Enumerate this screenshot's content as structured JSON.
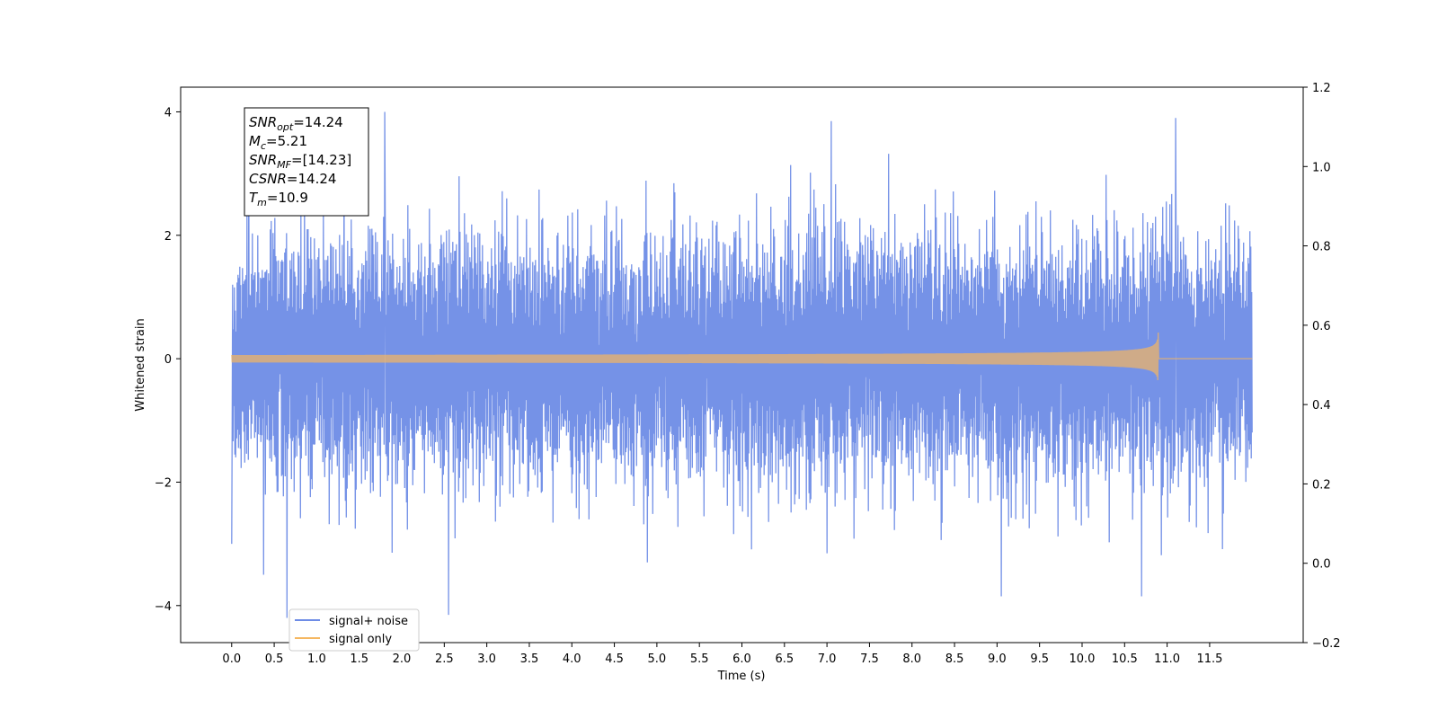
{
  "chart_data": {
    "type": "line",
    "xlabel": "Time (s)",
    "ylabel": "Whitened strain",
    "xlim": [
      -0.6,
      12.6
    ],
    "ylim": [
      -4.6,
      4.4
    ],
    "y2lim": [
      -0.2,
      1.2
    ],
    "x_ticks": [
      "0.0",
      "0.5",
      "1.0",
      "1.5",
      "2.0",
      "2.5",
      "3.0",
      "3.5",
      "4.0",
      "4.5",
      "5.0",
      "5.5",
      "6.0",
      "6.5",
      "7.0",
      "7.5",
      "8.0",
      "8.5",
      "9.0",
      "9.5",
      "10.0",
      "10.5",
      "11.0",
      "11.5"
    ],
    "y_ticks": [
      "4",
      "2",
      "0",
      "−2",
      "−4"
    ],
    "y_tick_values": [
      4,
      2,
      0,
      -2,
      -4
    ],
    "y2_ticks": [
      "1.2",
      "1.0",
      "0.8",
      "0.6",
      "0.4",
      "0.2",
      "0.0",
      "−0.2"
    ],
    "y2_tick_values": [
      1.2,
      1.0,
      0.8,
      0.6,
      0.4,
      0.2,
      0.0,
      -0.2
    ],
    "grid": false,
    "legend_position": "bottom-left",
    "series": [
      {
        "name": "signal+ noise",
        "color": "#6e8ce6",
        "t_start": 0.0,
        "t_end": 12.0,
        "noise_sigma": 1.0,
        "noise_peaks": [
          {
            "t": 0.0,
            "y": -3.0
          },
          {
            "t": 0.65,
            "y": -4.2
          },
          {
            "t": 1.8,
            "y": 4.0
          },
          {
            "t": 2.55,
            "y": -4.15
          },
          {
            "t": 7.05,
            "y": 3.85
          },
          {
            "t": 9.05,
            "y": -3.85
          },
          {
            "t": 10.7,
            "y": -3.85
          },
          {
            "t": 11.1,
            "y": 3.9
          }
        ]
      },
      {
        "name": "signal only",
        "color": "#f5b760",
        "type": "chirp",
        "t_start": 0.0,
        "t_merge": 10.9,
        "t_end": 12.0,
        "peak_amplitude": 1.5,
        "min_amplitude": 0.06
      }
    ],
    "annotation": [
      {
        "symbol": "SNR",
        "sub": "opt",
        "value": "=14.24"
      },
      {
        "symbol": "M",
        "sub": "c",
        "value": "=5.21"
      },
      {
        "symbol": "SNR",
        "sub": "MF",
        "value": "=[14.23]"
      },
      {
        "symbol": "CSNR",
        "sub": "",
        "value": "=14.24"
      },
      {
        "symbol": "T",
        "sub": "m",
        "value": "=10.9"
      }
    ]
  }
}
